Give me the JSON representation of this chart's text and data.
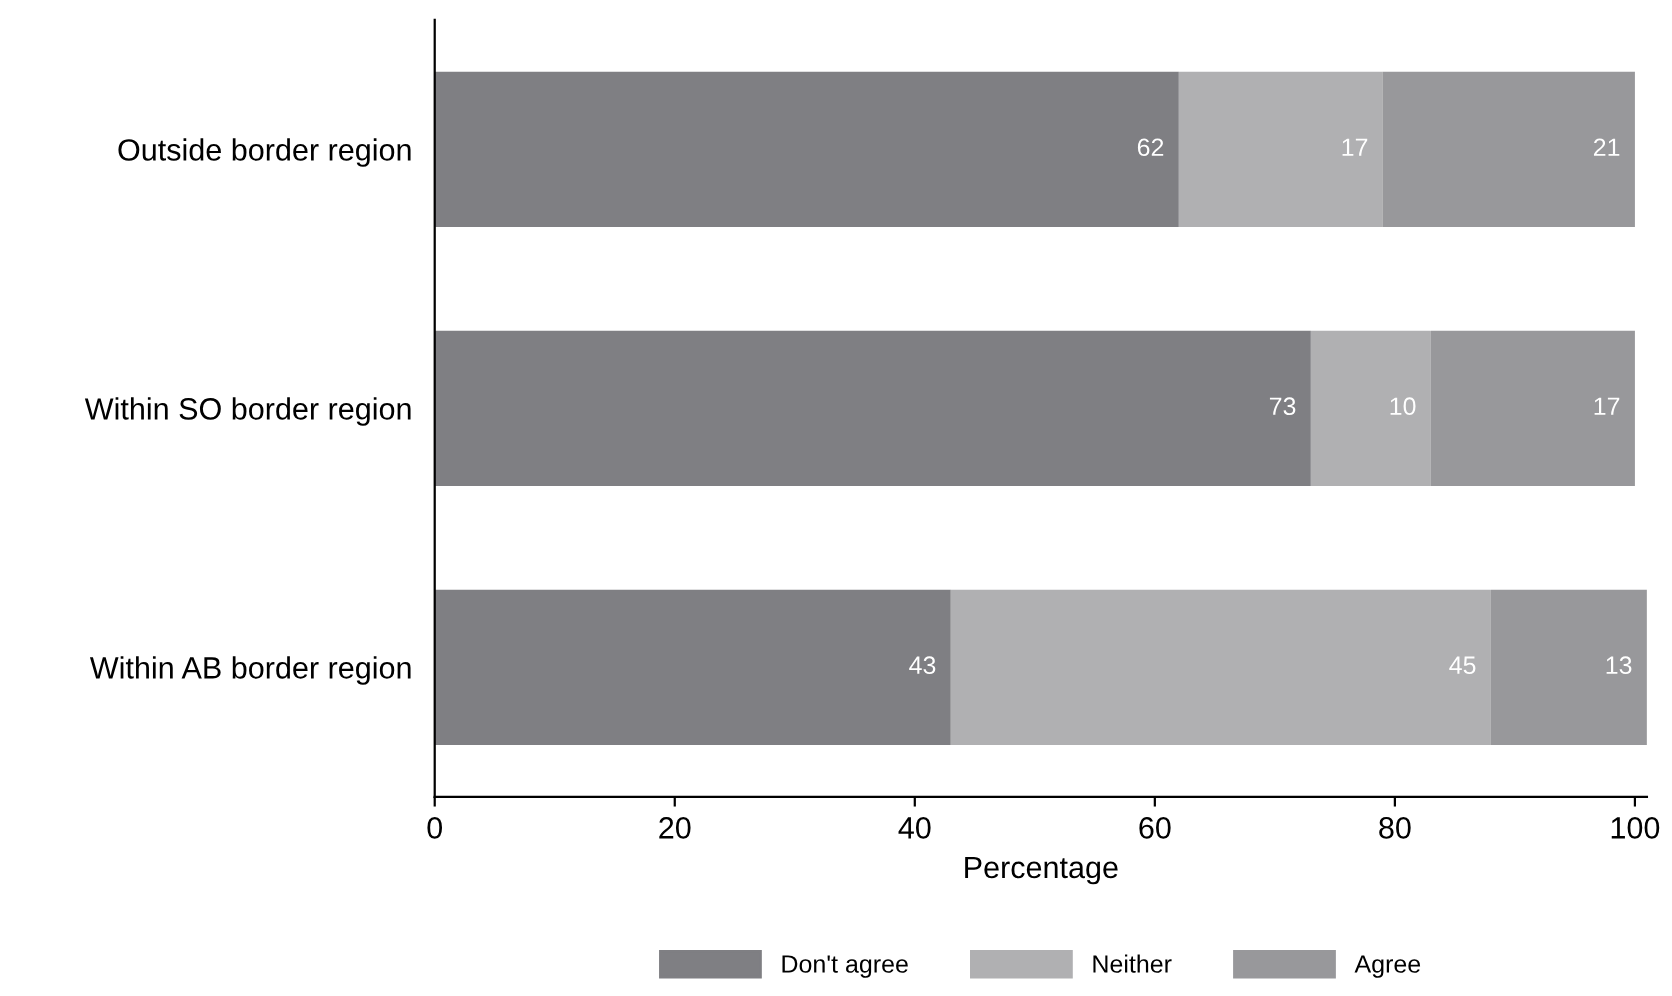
{
  "chart_data": {
    "type": "bar",
    "orientation": "horizontal",
    "stacked": true,
    "xlabel": "Percentage",
    "categories": [
      "Outside border region",
      "Within SO border region",
      "Within AB border region"
    ],
    "series": [
      {
        "name": "Don't agree",
        "color": "#7f7f83",
        "values": [
          62,
          73,
          43
        ]
      },
      {
        "name": "Neither",
        "color": "#b0b0b2",
        "values": [
          17,
          10,
          45
        ]
      },
      {
        "name": "Agree",
        "color": "#98989b",
        "values": [
          21,
          17,
          13
        ]
      }
    ],
    "data_labels": true,
    "xlim": [
      0,
      101
    ],
    "xticks": [
      0,
      20,
      40,
      60,
      80,
      100
    ],
    "grid": false,
    "legend": "bottom"
  }
}
